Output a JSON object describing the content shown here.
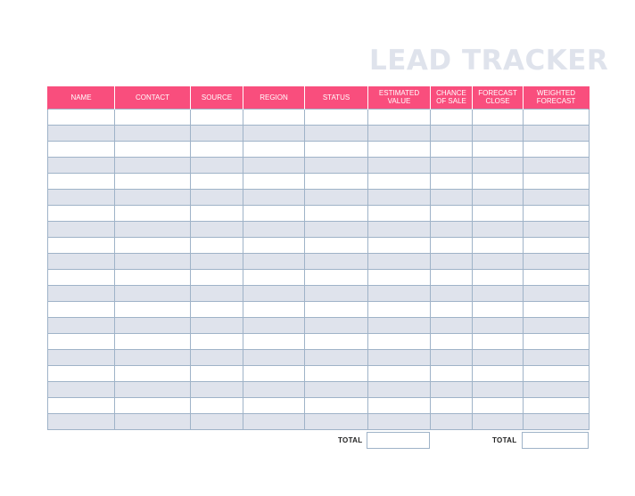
{
  "title": "LEAD TRACKER",
  "columns": [
    {
      "lines": [
        "NAME"
      ]
    },
    {
      "lines": [
        "CONTACT"
      ]
    },
    {
      "lines": [
        "SOURCE"
      ]
    },
    {
      "lines": [
        "REGION"
      ]
    },
    {
      "lines": [
        "STATUS"
      ]
    },
    {
      "lines": [
        "ESTIMATED",
        "VALUE"
      ]
    },
    {
      "lines": [
        "CHANCE",
        "OF SALE"
      ]
    },
    {
      "lines": [
        "FORECAST",
        "CLOSE"
      ]
    },
    {
      "lines": [
        "WEIGHTED",
        "FORECAST"
      ]
    }
  ],
  "row_count": 20,
  "totals": {
    "estimated_value_label": "TOTAL",
    "estimated_value": "",
    "weighted_forecast_label": "TOTAL",
    "weighted_forecast": ""
  },
  "colors": {
    "header_bg": "#f94e7d",
    "stripe": "#dfe3ec",
    "border": "#9fb3c8",
    "title": "#dfe3ec"
  }
}
